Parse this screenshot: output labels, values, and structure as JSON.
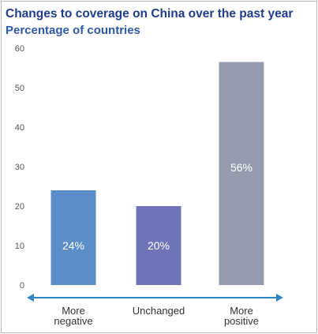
{
  "chart_data": {
    "type": "bar",
    "title": "Changes to coverage on China over the past year",
    "subtitle": "Percentage of countries",
    "categories": [
      [
        "More",
        "negative"
      ],
      [
        "Unchanged"
      ],
      [
        "More",
        "positive"
      ]
    ],
    "values": [
      24,
      20,
      56.5
    ],
    "data_labels": [
      "24%",
      "20%",
      "56%"
    ],
    "colors": [
      "#5b8ec9",
      "#6f74b8",
      "#959cae"
    ],
    "ylim": [
      0,
      60
    ],
    "yticks": [
      "0",
      "10",
      "20",
      "30",
      "40",
      "50",
      "60"
    ],
    "grid": false,
    "axis_color": "#2e86c8"
  }
}
